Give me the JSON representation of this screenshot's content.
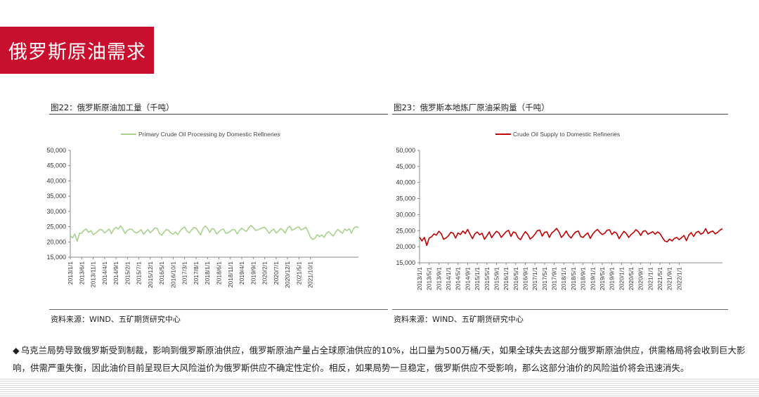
{
  "header": {
    "title": "俄罗斯原油需求"
  },
  "left_panel": {
    "figure_title": "图22：俄罗斯原油加工量（千吨）",
    "source": "资料来源：WIND、五矿期货研究中心"
  },
  "right_panel": {
    "figure_title": "图23：俄罗斯本地炼厂原油采购量（千吨）",
    "source": "资料来源：WIND、五矿期货研究中心"
  },
  "bullet": {
    "mark": "◆",
    "text": "乌克兰局势导致俄罗斯受到制裁，影响到俄罗斯原油供应，俄罗斯原油产量占全球原油供应的10%，出口量为500万桶/天，如果全球失去这部分俄罗斯原油供应，供需格局将会收到巨大影响，供需严重失衡，因此油价目前呈现巨大风险溢价为俄罗斯供应不确定性定价。相反，如果局势一旦稳定，俄罗斯供应不受影响，那么这部分油价的风险溢价将会迅速消失。"
  },
  "chart_data": [
    {
      "type": "line",
      "title": "",
      "series": [
        {
          "name": "Primary Crude Oil Processing by Domestic Refineries",
          "color": "#a9d18e",
          "x_start": "2013-01",
          "values": [
            22100,
            21300,
            22600,
            20200,
            22800,
            22900,
            23800,
            24200,
            23100,
            23700,
            22400,
            22800,
            23500,
            24100,
            23900,
            22900,
            23600,
            24200,
            22700,
            24100,
            24800,
            24200,
            25300,
            24200,
            22700,
            23800,
            24200,
            24100,
            23300,
            22900,
            23400,
            24000,
            22500,
            23300,
            24100,
            23000,
            23700,
            24600,
            24400,
            22800,
            22200,
            23200,
            24100,
            23800,
            22900,
            22500,
            23300,
            22400,
            23600,
            24400,
            24900,
            23600,
            22900,
            23900,
            24700,
            24500,
            23400,
            22300,
            24300,
            25200,
            24500,
            23100,
            24400,
            24100,
            22600,
            23300,
            24000,
            24200,
            22800,
            23000,
            23500,
            24100,
            23900,
            22600,
            23800,
            24500,
            23900,
            23400,
            24600,
            25400,
            24700,
            23800,
            23900,
            24300,
            24600,
            24800,
            23900,
            22800,
            23700,
            24200,
            22900,
            23500,
            24400,
            23800,
            22900,
            24600,
            25100,
            23800,
            24200,
            24700,
            24900,
            23900,
            24300,
            24800,
            23400,
            21600,
            20800,
            21200,
            22400,
            21700,
            22300,
            21500,
            22800,
            23400,
            22600,
            21900,
            23200,
            24100,
            23400,
            22800,
            24200,
            23700,
            24300,
            22900,
            24500,
            25000,
            24700
          ]
        }
      ],
      "ylim": [
        15000,
        50000
      ],
      "yticks": [
        "15,000",
        "20,000",
        "25,000",
        "30,000",
        "35,000",
        "40,000",
        "45,000",
        "50,000"
      ],
      "xticks": [
        "2013/1/1",
        "2013/6/1",
        "2013/11/1",
        "2014/4/1",
        "2014/9/1",
        "2015/2/1",
        "2015/7/1",
        "2015/12/1",
        "2016/5/1",
        "2016/10/1",
        "2017/3/1",
        "2017/8/1",
        "2018/1/1",
        "2018/6/1",
        "2018/11/1",
        "2019/4/1",
        "2019/9/1",
        "2020/2/1",
        "2020/7/1",
        "2020/12/1",
        "2021/5/1",
        "2021/10/1"
      ],
      "legend": "top-center"
    },
    {
      "type": "line",
      "title": "",
      "series": [
        {
          "name": "Crude Oil Supply to Domestic Refineries",
          "color": "#c00000",
          "x_start": "2013-01",
          "values": [
            23000,
            21800,
            22900,
            20400,
            22700,
            23100,
            24000,
            23600,
            24800,
            24100,
            22300,
            22700,
            23400,
            24500,
            24200,
            22700,
            24300,
            23800,
            24900,
            24100,
            25400,
            23900,
            22500,
            24000,
            24600,
            23700,
            24200,
            22300,
            23400,
            24600,
            22800,
            23900,
            24800,
            24300,
            22900,
            23800,
            24700,
            25100,
            23200,
            24600,
            24300,
            22800,
            22200,
            23600,
            24700,
            23900,
            22400,
            23000,
            23900,
            25000,
            25200,
            23300,
            24500,
            24600,
            22900,
            24300,
            24900,
            25700,
            24600,
            22900,
            23700,
            24900,
            23500,
            22700,
            23800,
            24600,
            24900,
            23200,
            22900,
            23700,
            24300,
            22600,
            23900,
            24800,
            25400,
            24500,
            23800,
            24200,
            25100,
            25300,
            23800,
            24600,
            24200,
            22500,
            23700,
            24800,
            24100,
            22900,
            23800,
            24400,
            25300,
            24700,
            23500,
            24800,
            25000,
            23900,
            24300,
            24700,
            23900,
            24600,
            24100,
            22900,
            21800,
            21500,
            22400,
            21800,
            22600,
            22900,
            22200,
            22800,
            23500,
            21900,
            23600,
            24400,
            23200,
            24400,
            24800,
            23900,
            24300,
            25600,
            24100,
            24600,
            24900,
            24000,
            24500,
            25200,
            25600
          ]
        }
      ],
      "ylim": [
        15000,
        50000
      ],
      "yticks": [
        "15,000",
        "20,000",
        "25,000",
        "30,000",
        "35,000",
        "40,000",
        "45,000",
        "50,000"
      ],
      "xticks": [
        "2013/1/1",
        "2013/5/1",
        "2013/9/1",
        "2014/1/1",
        "2014/5/1",
        "2014/9/1",
        "2015/1/1",
        "2015/5/1",
        "2015/9/1",
        "2016/1/1",
        "2016/5/1",
        "2016/9/1",
        "2017/1/1",
        "2017/5/1",
        "2017/9/1",
        "2018/1/1",
        "2018/5/1",
        "2018/9/1",
        "2019/1/1",
        "2019/5/1",
        "2019/9/1",
        "2020/1/1",
        "2020/5/1",
        "2020/9/1",
        "2021/1/1",
        "2021/5/1",
        "2021/9/1",
        "2022/1/1"
      ],
      "legend": "top-center"
    }
  ]
}
